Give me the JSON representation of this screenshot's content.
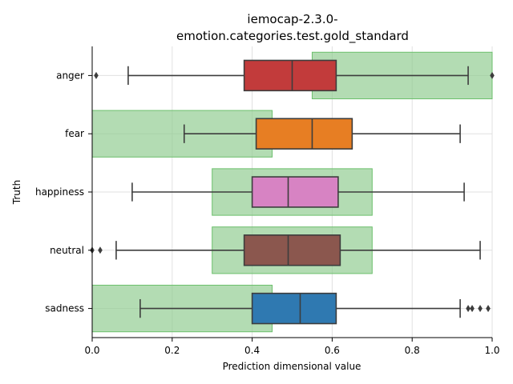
{
  "chart_data": {
    "type": "box",
    "orientation": "horizontal",
    "title_lines": [
      "iemocap-2.3.0-",
      "emotion.categories.test.gold_standard"
    ],
    "xlabel": "Prediction dimensional value",
    "ylabel": "Truth",
    "xlim": [
      0.0,
      1.0
    ],
    "xticks": [
      0.0,
      0.2,
      0.4,
      0.6,
      0.8,
      1.0
    ],
    "xtick_labels": [
      "0.0",
      "0.2",
      "0.4",
      "0.6",
      "0.8",
      "1.0"
    ],
    "grid": true,
    "categories": [
      "anger",
      "fear",
      "happiness",
      "neutral",
      "sadness"
    ],
    "gold_ranges": [
      {
        "category": "anger",
        "range": [
          0.55,
          1.0
        ]
      },
      {
        "category": "fear",
        "range": [
          0.0,
          0.45
        ]
      },
      {
        "category": "happiness",
        "range": [
          0.3,
          0.7
        ]
      },
      {
        "category": "neutral",
        "range": [
          0.3,
          0.7
        ]
      },
      {
        "category": "sadness",
        "range": [
          0.0,
          0.45
        ]
      }
    ],
    "gold_range_color": "#8fcc8f",
    "boxes": [
      {
        "category": "anger",
        "whisker_low": 0.09,
        "q1": 0.38,
        "median": 0.5,
        "q3": 0.61,
        "whisker_high": 0.94,
        "outliers": [
          0.01,
          1.0
        ],
        "color": "#c23b3b"
      },
      {
        "category": "fear",
        "whisker_low": 0.23,
        "q1": 0.41,
        "median": 0.55,
        "q3": 0.65,
        "whisker_high": 0.92,
        "outliers": [],
        "color": "#e77e23"
      },
      {
        "category": "happiness",
        "whisker_low": 0.1,
        "q1": 0.4,
        "median": 0.49,
        "q3": 0.615,
        "whisker_high": 0.93,
        "outliers": [],
        "color": "#d783c3"
      },
      {
        "category": "neutral",
        "whisker_low": 0.06,
        "q1": 0.38,
        "median": 0.49,
        "q3": 0.62,
        "whisker_high": 0.97,
        "outliers": [
          0.0,
          0.02
        ],
        "color": "#8b574e"
      },
      {
        "category": "sadness",
        "whisker_low": 0.12,
        "q1": 0.4,
        "median": 0.52,
        "q3": 0.61,
        "whisker_high": 0.92,
        "outliers": [
          0.94,
          0.95,
          0.97,
          0.99
        ],
        "color": "#2f79b1"
      }
    ]
  }
}
